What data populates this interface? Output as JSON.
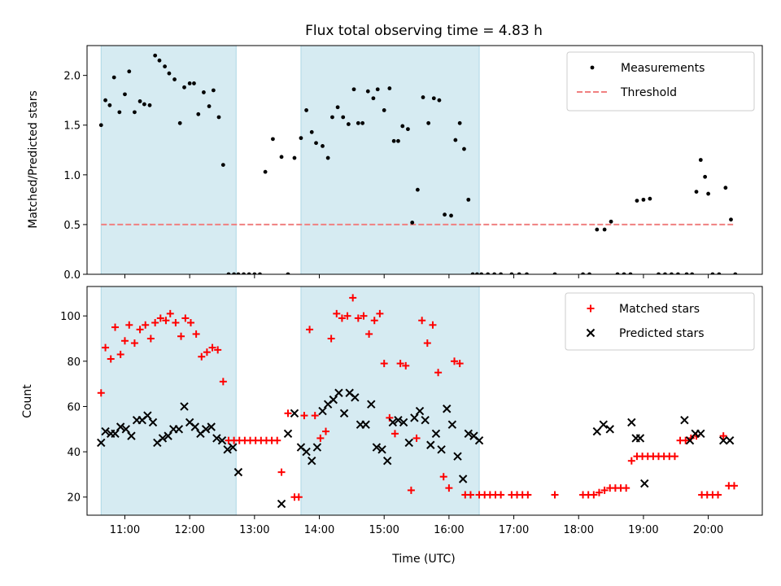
{
  "chart_data": {
    "title": "Flux total observing time = 4.83 h",
    "xlabel": "Time (UTC)",
    "x_unit": "UTC time of day",
    "xlim": [
      "10:25",
      "20:50"
    ],
    "x_ticks": [
      "11:00",
      "12:00",
      "13:00",
      "14:00",
      "15:00",
      "16:00",
      "17:00",
      "18:00",
      "19:00",
      "20:00"
    ],
    "shaded_intervals": [
      {
        "start": "10:38",
        "end": "12:43"
      },
      {
        "start": "13:43",
        "end": "16:28"
      }
    ],
    "colors": {
      "shade": "#add8e6",
      "measurements": "#000000",
      "threshold": "#f08080",
      "matched": "#ff0000",
      "predicted": "#000000"
    },
    "legend_position": "top-right",
    "panels": [
      {
        "type": "scatter",
        "ylabel": "Matched/Predicted stars",
        "ylim": [
          0,
          2.3
        ],
        "y_ticks": [
          "0.0",
          "0.5",
          "1.0",
          "1.5",
          "2.0"
        ],
        "threshold": {
          "name": "Threshold",
          "value": 0.5,
          "from": "10:38",
          "to": "20:23"
        },
        "series": [
          {
            "name": "Measurements",
            "marker": "dot",
            "x": [
              "10:38",
              "10:42",
              "10:46",
              "10:50",
              "10:55",
              "11:00",
              "11:04",
              "11:09",
              "11:14",
              "11:18",
              "11:23",
              "11:28",
              "11:32",
              "11:37",
              "11:41",
              "11:46",
              "11:51",
              "11:55",
              "12:00",
              "12:04",
              "12:08",
              "12:13",
              "12:18",
              "12:22",
              "12:27",
              "12:31",
              "12:36",
              "12:41",
              "12:45",
              "12:50",
              "12:55",
              "13:00",
              "13:05",
              "13:10",
              "13:17",
              "13:25",
              "13:31",
              "13:37",
              "13:43",
              "13:48",
              "13:53",
              "13:57",
              "14:03",
              "14:08",
              "14:12",
              "14:17",
              "14:22",
              "14:27",
              "14:32",
              "14:36",
              "14:40",
              "14:45",
              "14:50",
              "14:54",
              "15:00",
              "15:05",
              "15:09",
              "15:13",
              "15:17",
              "15:22",
              "15:26",
              "15:31",
              "15:36",
              "15:41",
              "15:46",
              "15:51",
              "15:56",
              "16:02",
              "16:06",
              "16:10",
              "16:14",
              "16:18",
              "16:22",
              "16:26",
              "16:30",
              "16:36",
              "16:42",
              "16:48",
              "16:58",
              "17:05",
              "17:12",
              "17:38",
              "18:04",
              "18:10",
              "18:17",
              "18:24",
              "18:30",
              "18:36",
              "18:42",
              "18:48",
              "18:54",
              "19:00",
              "19:06",
              "19:14",
              "19:20",
              "19:26",
              "19:32",
              "19:40",
              "19:45",
              "19:49",
              "19:53",
              "19:57",
              "19:60",
              "20:04",
              "20:10",
              "20:16",
              "20:21",
              "20:25"
            ],
            "y": [
              1.5,
              1.75,
              1.7,
              1.98,
              1.63,
              1.81,
              2.04,
              1.63,
              1.74,
              1.71,
              1.7,
              2.2,
              2.15,
              2.09,
              2.02,
              1.96,
              1.52,
              1.88,
              1.92,
              1.92,
              1.61,
              1.83,
              1.69,
              1.85,
              1.58,
              1.1,
              0,
              0,
              0,
              0,
              0,
              0,
              0,
              1.03,
              1.36,
              1.18,
              0,
              1.17,
              1.37,
              1.65,
              1.43,
              1.32,
              1.29,
              1.17,
              1.58,
              1.68,
              1.58,
              1.51,
              1.86,
              1.52,
              1.52,
              1.84,
              1.77,
              1.86,
              1.65,
              1.87,
              1.34,
              1.34,
              1.49,
              1.46,
              0.52,
              0.85,
              1.78,
              1.52,
              1.77,
              1.75,
              0.6,
              0.59,
              1.35,
              1.52,
              1.26,
              0.75,
              0,
              0,
              0,
              0,
              0,
              0,
              0,
              0,
              0,
              0,
              0,
              0,
              0.45,
              0.45,
              0.53,
              0,
              0,
              0,
              0.74,
              0.75,
              0.76,
              0,
              0,
              0,
              0,
              0,
              0,
              0.83,
              1.15,
              0.98,
              0.81,
              0,
              0,
              0.87,
              0.55,
              0
            ]
          }
        ]
      },
      {
        "type": "scatter",
        "ylabel": "Count",
        "ylim": [
          12,
          113
        ],
        "y_ticks": [
          "20",
          "40",
          "60",
          "80",
          "100"
        ],
        "series": [
          {
            "name": "Matched stars",
            "marker": "plus",
            "x": [
              "10:38",
              "10:42",
              "10:47",
              "10:51",
              "10:56",
              "11:00",
              "11:04",
              "11:09",
              "11:14",
              "11:19",
              "11:24",
              "11:28",
              "11:33",
              "11:38",
              "11:42",
              "11:47",
              "11:52",
              "11:56",
              "12:01",
              "12:06",
              "12:11",
              "12:16",
              "12:21",
              "12:26",
              "12:31",
              "12:36",
              "12:41",
              "12:46",
              "12:51",
              "12:56",
              "13:01",
              "13:06",
              "13:11",
              "13:16",
              "13:21",
              "13:25",
              "13:31",
              "13:37",
              "13:41",
              "13:46",
              "13:51",
              "13:56",
              "14:01",
              "14:06",
              "14:11",
              "14:16",
              "14:21",
              "14:26",
              "14:31",
              "14:36",
              "14:41",
              "14:46",
              "14:51",
              "14:56",
              "15:00",
              "15:05",
              "15:10",
              "15:15",
              "15:20",
              "15:25",
              "15:30",
              "15:35",
              "15:40",
              "15:45",
              "15:50",
              "15:55",
              "16:00",
              "16:05",
              "16:10",
              "16:15",
              "16:20",
              "16:28",
              "16:33",
              "16:38",
              "16:43",
              "16:48",
              "16:58",
              "17:03",
              "17:08",
              "17:13",
              "17:38",
              "18:04",
              "18:09",
              "18:14",
              "18:19",
              "18:24",
              "18:29",
              "18:34",
              "18:39",
              "18:44",
              "18:49",
              "18:54",
              "18:59",
              "19:04",
              "19:09",
              "19:14",
              "19:19",
              "19:24",
              "19:29",
              "19:34",
              "19:39",
              "19:44",
              "19:49",
              "19:54",
              "19:59",
              "20:04",
              "20:09",
              "20:14",
              "20:19",
              "20:24"
            ],
            "y": [
              66,
              86,
              81,
              95,
              83,
              89,
              96,
              88,
              94,
              96,
              90,
              97,
              99,
              98,
              101,
              97,
              91,
              99,
              97,
              92,
              82,
              84,
              86,
              85,
              71,
              45,
              45,
              45,
              45,
              45,
              45,
              45,
              45,
              45,
              45,
              31,
              57,
              20,
              20,
              56,
              94,
              56,
              46,
              49,
              90,
              101,
              99,
              100,
              108,
              99,
              100,
              92,
              98,
              101,
              79,
              55,
              48,
              79,
              78,
              23,
              46,
              98,
              88,
              96,
              75,
              29,
              24,
              80,
              79,
              21,
              21,
              21,
              21,
              21,
              21,
              21,
              21,
              21,
              21,
              21,
              21,
              21,
              21,
              21,
              22,
              23,
              24,
              24,
              24,
              24,
              36,
              38,
              38,
              38,
              38,
              38,
              38,
              38,
              38,
              45,
              45,
              46,
              47,
              21,
              21,
              21,
              21,
              47,
              25,
              25
            ]
          },
          {
            "name": "Predicted stars",
            "marker": "x",
            "x": [
              "10:38",
              "10:42",
              "10:47",
              "10:51",
              "10:56",
              "11:01",
              "11:06",
              "11:11",
              "11:16",
              "11:21",
              "11:26",
              "11:30",
              "11:35",
              "11:40",
              "11:45",
              "11:50",
              "11:55",
              "11:60",
              "12:05",
              "12:10",
              "12:15",
              "12:20",
              "12:25",
              "12:30",
              "12:35",
              "12:40",
              "12:45",
              "13:25",
              "13:31",
              "13:37",
              "13:43",
              "13:48",
              "13:53",
              "13:58",
              "14:03",
              "14:08",
              "14:13",
              "14:18",
              "14:23",
              "14:28",
              "14:33",
              "14:38",
              "14:43",
              "14:48",
              "14:53",
              "14:58",
              "15:03",
              "15:08",
              "15:13",
              "15:18",
              "15:23",
              "15:28",
              "15:33",
              "15:38",
              "15:43",
              "15:48",
              "15:53",
              "15:58",
              "16:03",
              "16:08",
              "16:13",
              "16:18",
              "16:23",
              "16:28",
              "18:17",
              "18:23",
              "18:29",
              "18:49",
              "18:53",
              "18:57",
              "19:01",
              "19:38",
              "19:43",
              "19:48",
              "19:53",
              "20:14",
              "20:20"
            ],
            "y": [
              44,
              49,
              48,
              48,
              51,
              50,
              47,
              54,
              54,
              56,
              53,
              44,
              46,
              47,
              50,
              50,
              60,
              53,
              51,
              48,
              50,
              51,
              46,
              45,
              41,
              42,
              31,
              17,
              48,
              57,
              42,
              40,
              36,
              42,
              58,
              61,
              63,
              66,
              57,
              66,
              64,
              52,
              52,
              61,
              42,
              41,
              36,
              53,
              54,
              53,
              44,
              55,
              58,
              54,
              43,
              48,
              41,
              59,
              52,
              38,
              28,
              48,
              47,
              45,
              49,
              52,
              50,
              53,
              46,
              46,
              26,
              54,
              45,
              48,
              48,
              45,
              45
            ]
          }
        ]
      }
    ]
  }
}
